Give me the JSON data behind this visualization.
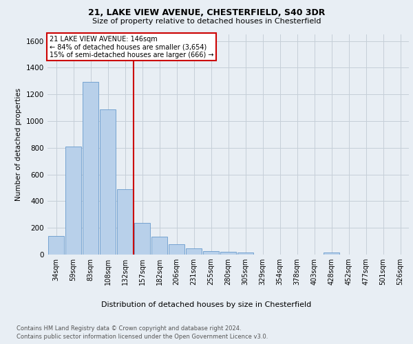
{
  "title1": "21, LAKE VIEW AVENUE, CHESTERFIELD, S40 3DR",
  "title2": "Size of property relative to detached houses in Chesterfield",
  "xlabel": "Distribution of detached houses by size in Chesterfield",
  "ylabel": "Number of detached properties",
  "footer1": "Contains HM Land Registry data © Crown copyright and database right 2024.",
  "footer2": "Contains public sector information licensed under the Open Government Licence v3.0.",
  "bar_labels": [
    "34sqm",
    "59sqm",
    "83sqm",
    "108sqm",
    "132sqm",
    "157sqm",
    "182sqm",
    "206sqm",
    "231sqm",
    "255sqm",
    "280sqm",
    "305sqm",
    "329sqm",
    "354sqm",
    "378sqm",
    "403sqm",
    "428sqm",
    "452sqm",
    "477sqm",
    "501sqm",
    "526sqm"
  ],
  "bar_values": [
    140,
    810,
    1295,
    1090,
    490,
    235,
    135,
    75,
    45,
    25,
    20,
    15,
    0,
    0,
    0,
    0,
    15,
    0,
    0,
    0,
    0
  ],
  "bar_color": "#b8d0ea",
  "bar_edgecolor": "#6699cc",
  "property_label": "21 LAKE VIEW AVENUE: 146sqm",
  "annotation_line1": "← 84% of detached houses are smaller (3,654)",
  "annotation_line2": "15% of semi-detached houses are larger (666) →",
  "vline_position": 4.5,
  "vline_color": "#cc0000",
  "annotation_box_color": "#cc0000",
  "ylim": [
    0,
    1650
  ],
  "yticks": [
    0,
    200,
    400,
    600,
    800,
    1000,
    1200,
    1400,
    1600
  ],
  "bg_color": "#e8eef4",
  "plot_bg_color": "#e8eef4",
  "grid_color": "#c5cfd8"
}
